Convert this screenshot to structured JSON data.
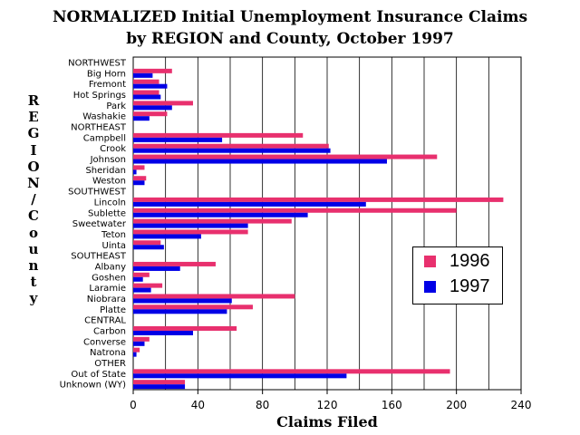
{
  "chart_data": {
    "type": "bar",
    "orientation": "horizontal",
    "title": "NORMALIZED Initial Unemployment Insurance Claims",
    "subtitle": "by REGION and County, October 1997",
    "xlabel": "Claims Filed",
    "ylabel": "REGION/County",
    "xlim": [
      0,
      240
    ],
    "xticks": [
      0,
      40,
      80,
      120,
      160,
      200,
      240
    ],
    "grid": "vertical",
    "legend_position": "right",
    "categories": [
      "NORTHWEST",
      "Big Horn",
      "Fremont",
      "Hot Springs",
      "Park",
      "Washakie",
      "NORTHEAST",
      "Campbell",
      "Crook",
      "Johnson",
      "Sheridan",
      "Weston",
      "SOUTHWEST",
      "Lincoln",
      "Sublette",
      "Sweetwater",
      "Teton",
      "Uinta",
      "SOUTHEAST",
      "Albany",
      "Goshen",
      "Laramie",
      "Niobrara",
      "Platte",
      "CENTRAL",
      "Carbon",
      "Converse",
      "Natrona",
      "OTHER",
      "Out of State",
      "Unknown (WY)"
    ],
    "series": [
      {
        "name": "1996",
        "color": "#e8306e",
        "values": [
          0,
          24,
          16,
          16,
          37,
          21,
          0,
          105,
          121,
          188,
          7,
          8,
          0,
          229,
          200,
          98,
          71,
          17,
          0,
          51,
          10,
          18,
          100,
          74,
          0,
          64,
          10,
          4,
          0,
          196,
          32
        ]
      },
      {
        "name": "1997",
        "color": "#0000e6",
        "values": [
          0,
          12,
          21,
          17,
          24,
          10,
          0,
          55,
          122,
          157,
          2,
          7,
          0,
          144,
          108,
          71,
          42,
          19,
          0,
          29,
          6,
          11,
          61,
          58,
          0,
          37,
          7,
          2,
          0,
          132,
          32
        ]
      }
    ]
  }
}
